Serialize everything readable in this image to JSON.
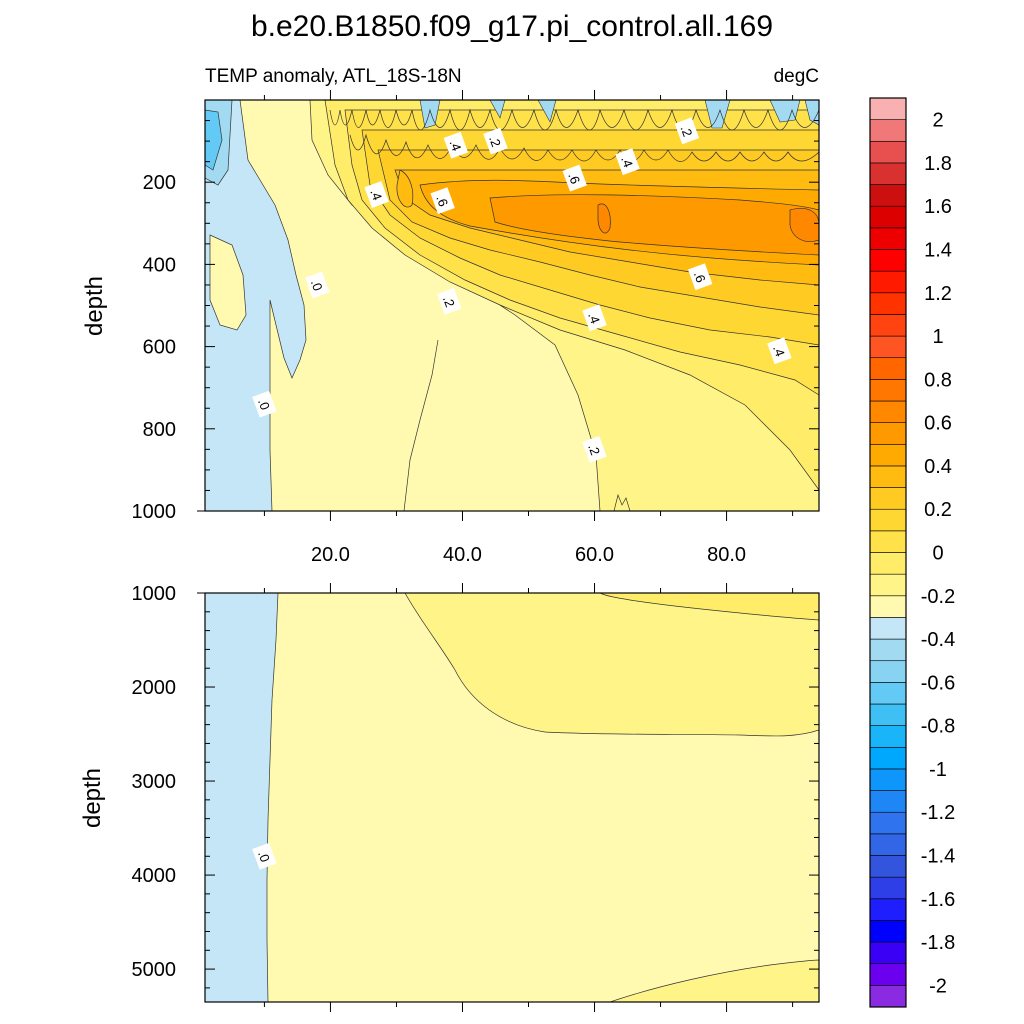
{
  "chart_data": {
    "type": "heatmap",
    "title": "b.e20.B1850.f09_g17.pi_control.all.169",
    "subtitle_left": "TEMP anomaly, ATL_18S-18N",
    "subtitle_right": "degC",
    "ylabel": "depth",
    "x_range": [
      1,
      94
    ],
    "x_ticks": [
      20,
      40,
      60,
      80
    ],
    "x_tick_labels": [
      "20.0",
      "40.0",
      "60.0",
      "80.0"
    ],
    "panels": [
      {
        "id": "upper",
        "ylim": [
          0,
          1000
        ],
        "y_ticks": [
          200,
          400,
          600,
          800,
          1000
        ],
        "y_tick_labels": [
          "200",
          "400",
          "600",
          "800",
          "1000"
        ],
        "contour_labels": [
          {
            "text": ".4",
            "x": 39,
            "y": 110
          },
          {
            "text": ".2",
            "x": 45,
            "y": 100
          },
          {
            "text": ".2",
            "x": 74,
            "y": 75
          },
          {
            "text": ".4",
            "x": 65,
            "y": 150
          },
          {
            "text": ".6",
            "x": 57,
            "y": 190
          },
          {
            "text": ".4",
            "x": 27,
            "y": 230
          },
          {
            "text": ".6",
            "x": 37,
            "y": 245
          },
          {
            "text": ".0",
            "x": 18,
            "y": 450
          },
          {
            "text": ".6",
            "x": 76,
            "y": 430
          },
          {
            "text": ".2",
            "x": 38,
            "y": 490
          },
          {
            "text": ".4",
            "x": 60,
            "y": 530
          },
          {
            "text": ".4",
            "x": 88,
            "y": 610
          },
          {
            "text": ".0",
            "x": 10,
            "y": 740
          },
          {
            "text": ".2",
            "x": 60,
            "y": 850
          }
        ]
      },
      {
        "id": "lower",
        "ylim": [
          1000,
          5350
        ],
        "y_ticks": [
          1000,
          2000,
          3000,
          4000,
          5000
        ],
        "y_tick_labels": [
          "1000",
          "2000",
          "3000",
          "4000",
          "5000"
        ],
        "contour_labels": [
          {
            "text": ".0",
            "x": 10,
            "y": 3800
          }
        ]
      }
    ],
    "colorbar": {
      "levels": [
        -2.1,
        -2.0,
        -1.9,
        -1.8,
        -1.7,
        -1.6,
        -1.5,
        -1.4,
        -1.3,
        -1.2,
        -1.1,
        -1.0,
        -0.9,
        -0.8,
        -0.7,
        -0.6,
        -0.5,
        -0.4,
        -0.3,
        -0.2,
        -0.1,
        0.0,
        0.1,
        0.2,
        0.3,
        0.4,
        0.5,
        0.6,
        0.7,
        0.8,
        0.9,
        1.0,
        1.1,
        1.2,
        1.3,
        1.4,
        1.5,
        1.6,
        1.7,
        1.8,
        1.9,
        2.0,
        2.1
      ],
      "labels": [
        "2",
        "1.8",
        "1.6",
        "1.4",
        "1.2",
        "1",
        "0.8",
        "0.6",
        "0.4",
        "0.2",
        "0",
        "-0.2",
        "-0.4",
        "-0.6",
        "-0.8",
        "-1",
        "-1.2",
        "-1.4",
        "-1.6",
        "-1.8",
        "-2"
      ],
      "label_values": [
        2.0,
        1.8,
        1.6,
        1.4,
        1.2,
        1.0,
        0.8,
        0.6,
        0.4,
        0.2,
        0.0,
        -0.2,
        -0.4,
        -0.6,
        -0.8,
        -1.0,
        -1.2,
        -1.4,
        -1.6,
        -1.8,
        -2.0
      ],
      "colors": [
        "#8a2be2",
        "#6a00ee",
        "#3a00f5",
        "#0000ff",
        "#1e1eff",
        "#2f3fe8",
        "#3355dd",
        "#3366e6",
        "#2f74ee",
        "#1f86f5",
        "#0f96fa",
        "#00a8fd",
        "#1ab4f8",
        "#3fc0f5",
        "#62caf5",
        "#88d2f2",
        "#a2daf2",
        "#c4e6f6",
        "#fffab0",
        "#fff487",
        "#ffec68",
        "#ffe24a",
        "#ffd733",
        "#ffcb22",
        "#ffbb10",
        "#ffaa00",
        "#ff9900",
        "#ff8800",
        "#ff7700",
        "#ff6600",
        "#ff5522",
        "#ff4411",
        "#ff3300",
        "#ff1a00",
        "#ff0000",
        "#ee0000",
        "#dd0000",
        "#cc1010",
        "#d93030",
        "#e85050",
        "#f07878",
        "#f8b0b0"
      ]
    }
  }
}
